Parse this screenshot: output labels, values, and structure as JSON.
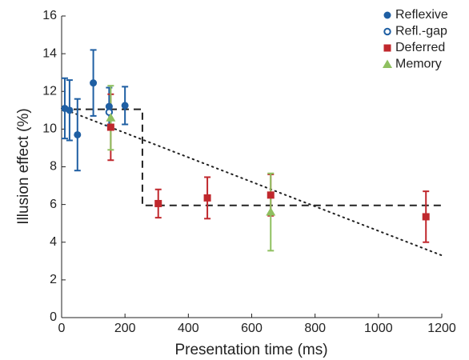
{
  "chart_data": {
    "type": "scatter",
    "xlabel": "Presentation time (ms)",
    "ylabel": "Illusion effect (%)",
    "xlim": [
      0,
      1200
    ],
    "xticks": [
      0,
      200,
      400,
      600,
      800,
      1000,
      1200
    ],
    "ylim": [
      0,
      16
    ],
    "yticks": [
      0,
      2,
      4,
      6,
      8,
      10,
      12,
      14,
      16
    ],
    "lines": [
      {
        "style": "dashed",
        "x": [
          0,
          255,
          255,
          1200
        ],
        "values": [
          11.05,
          11.05,
          5.95,
          5.95
        ]
      },
      {
        "style": "dotted",
        "x": [
          0,
          1200
        ],
        "values": [
          11.1,
          3.3
        ]
      }
    ],
    "series": [
      {
        "name": "Reflexive",
        "color": "#1f5fa3",
        "marker": "circle",
        "x": [
          10,
          25,
          50,
          100,
          150,
          200
        ],
        "values": [
          11.1,
          11.0,
          9.7,
          12.45,
          11.2,
          11.25
        ],
        "errors": [
          1.6,
          1.6,
          1.9,
          1.75,
          1.0,
          1.0
        ]
      },
      {
        "name": "Refl.-gap",
        "color": "#1f5fa3",
        "marker": "open-circle",
        "x": [
          150
        ],
        "values": [
          10.9
        ]
      },
      {
        "name": "Deferred",
        "color": "#c0282d",
        "marker": "square",
        "x": [
          155,
          305,
          460,
          660,
          1150
        ],
        "values": [
          10.1,
          6.05,
          6.35,
          6.5,
          5.35
        ],
        "errors": [
          1.75,
          0.75,
          1.1,
          1.1,
          1.35
        ]
      },
      {
        "name": "Memory",
        "color": "#8fc060",
        "marker": "triangle",
        "x": [
          155,
          660
        ],
        "values": [
          10.6,
          5.6
        ],
        "errors": [
          1.7,
          2.05
        ]
      }
    ]
  }
}
